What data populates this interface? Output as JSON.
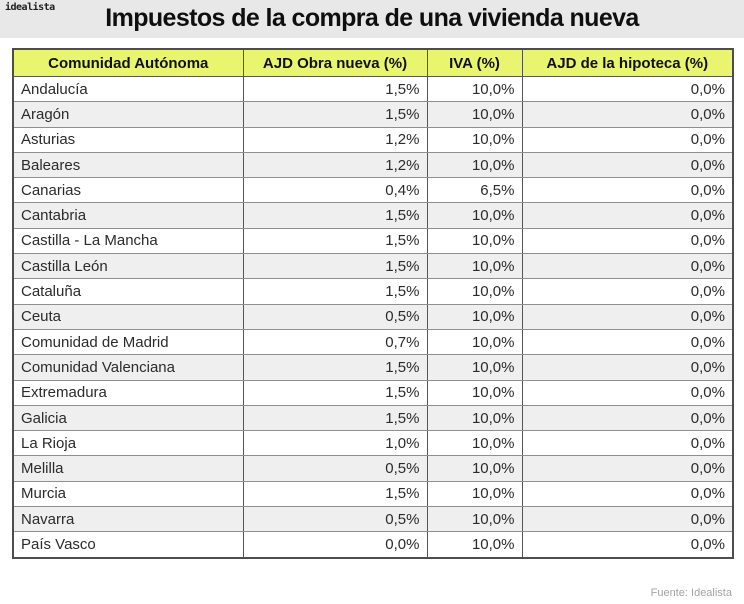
{
  "brand": {
    "logo_text": "idealista"
  },
  "header": {
    "title": "Impuestos de la compra de una vivienda nueva"
  },
  "footer": {
    "source": "Fuente: Idealista"
  },
  "colors": {
    "title_band_bg": "#e8e8e8",
    "table_header_bg": "#e9f56e",
    "alt_row_bg": "#efefef",
    "outer_border": "#4d4d4d",
    "column_border": "#555555",
    "row_border": "#8f8f8f"
  },
  "chart_data": {
    "type": "table",
    "title": "Impuestos de la compra de una vivienda nueva",
    "columns": [
      "Comunidad Autónoma",
      "AJD Obra nueva (%)",
      "IVA (%)",
      "AJD de la hipoteca (%)"
    ],
    "rows": [
      [
        "Andalucía",
        "1,5%",
        "10,0%",
        "0,0%"
      ],
      [
        "Aragón",
        "1,5%",
        "10,0%",
        "0,0%"
      ],
      [
        "Asturias",
        "1,2%",
        "10,0%",
        "0,0%"
      ],
      [
        "Baleares",
        "1,2%",
        "10,0%",
        "0,0%"
      ],
      [
        "Canarias",
        "0,4%",
        "6,5%",
        "0,0%"
      ],
      [
        "Cantabria",
        "1,5%",
        "10,0%",
        "0,0%"
      ],
      [
        "Castilla - La Mancha",
        "1,5%",
        "10,0%",
        "0,0%"
      ],
      [
        "Castilla León",
        "1,5%",
        "10,0%",
        "0,0%"
      ],
      [
        "Cataluña",
        "1,5%",
        "10,0%",
        "0,0%"
      ],
      [
        "Ceuta",
        "0,5%",
        "10,0%",
        "0,0%"
      ],
      [
        "Comunidad de Madrid",
        "0,7%",
        "10,0%",
        "0,0%"
      ],
      [
        "Comunidad Valenciana",
        "1,5%",
        "10,0%",
        "0,0%"
      ],
      [
        "Extremadura",
        "1,5%",
        "10,0%",
        "0,0%"
      ],
      [
        "Galicia",
        "1,5%",
        "10,0%",
        "0,0%"
      ],
      [
        "La Rioja",
        "1,0%",
        "10,0%",
        "0,0%"
      ],
      [
        "Melilla",
        "0,5%",
        "10,0%",
        "0,0%"
      ],
      [
        "Murcia",
        "1,5%",
        "10,0%",
        "0,0%"
      ],
      [
        "Navarra",
        "0,5%",
        "10,0%",
        "0,0%"
      ],
      [
        "País Vasco",
        "0,0%",
        "10,0%",
        "0,0%"
      ]
    ]
  }
}
